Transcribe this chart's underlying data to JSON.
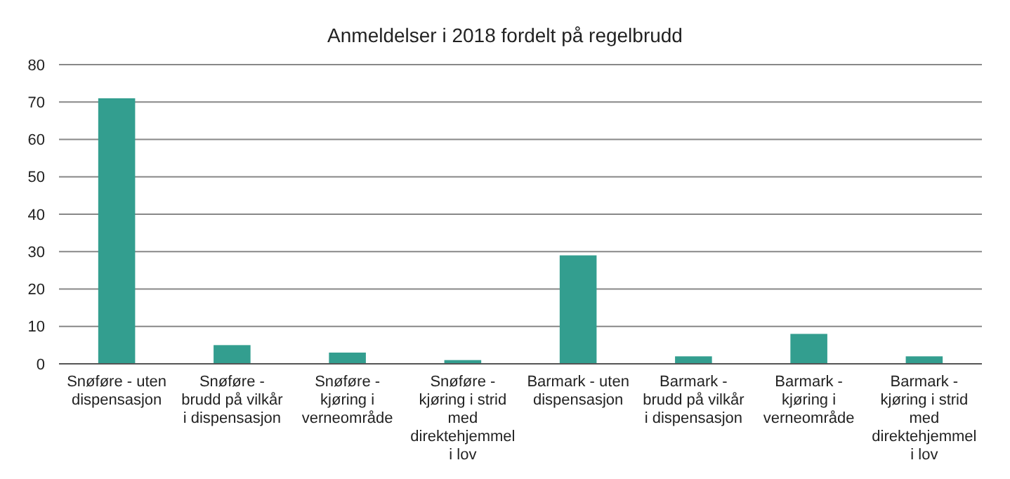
{
  "chart_data": {
    "type": "bar",
    "title": "Anmeldelser i 2018 fordelt på regelbrudd",
    "categories": [
      "Snøføre - uten dispensasjon",
      "Snøføre - brudd på vilkår i dispensasjon",
      "Snøføre - kjøring i verneområde",
      "Snøføre - kjøring i strid med direktehjemmel i lov",
      "Barmark - uten dispensasjon",
      "Barmark - brudd på vilkår i dispensasjon",
      "Barmark - kjøring i verneområde",
      "Barmark - kjøring i strid med direktehjemmel i lov"
    ],
    "values": [
      71,
      5,
      3,
      1,
      29,
      2,
      8,
      2
    ],
    "color": "#339e8f",
    "ylim": [
      0,
      80
    ],
    "yticks": [
      0,
      10,
      20,
      30,
      40,
      50,
      60,
      70,
      80
    ],
    "grid": "y"
  }
}
